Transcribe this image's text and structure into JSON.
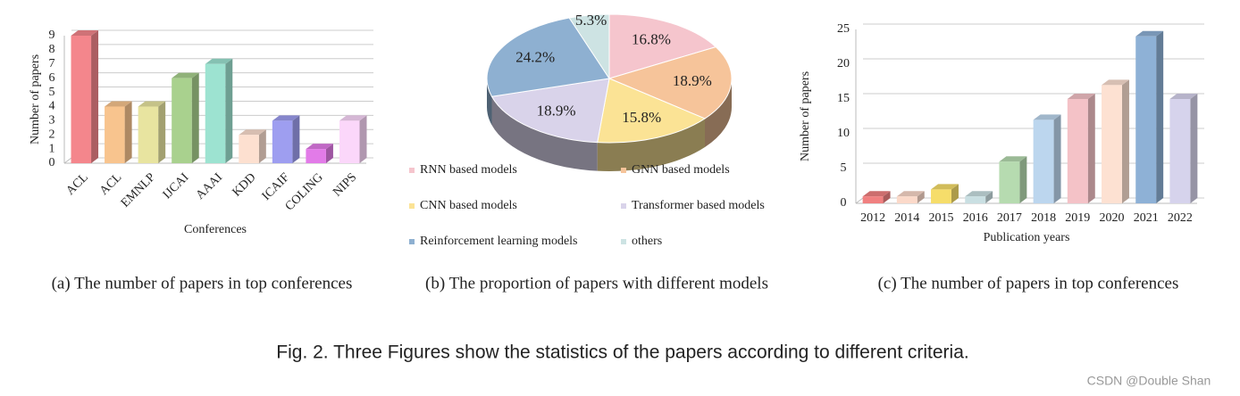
{
  "chart_data": [
    {
      "type": "bar",
      "caption": "(a) The number of papers in top conferences",
      "x_label": "Conferences",
      "y_label": "Number of papers",
      "categories": [
        "ACL",
        "ACL",
        "EMNLP",
        "IJCAI",
        "AAAI",
        "KDD",
        "ICAIF",
        "COLING",
        "NIPS"
      ],
      "values": [
        9,
        4,
        4,
        6,
        7,
        2,
        3,
        1,
        3
      ],
      "colors": [
        "#f4868c",
        "#f8c48e",
        "#e8e4a0",
        "#a9d18e",
        "#9de3d1",
        "#fde0d0",
        "#9e9ef0",
        "#e27be8",
        "#fbd7fa"
      ],
      "ylim": [
        0,
        9
      ],
      "yticks": [
        0,
        1,
        2,
        3,
        4,
        5,
        6,
        7,
        8,
        9
      ],
      "grid": true,
      "rotate_labels": true
    },
    {
      "type": "pie",
      "caption": "(b) The proportion of papers with different models",
      "categories": [
        "RNN based models",
        "GNN based models",
        "CNN based models",
        "Transformer based models",
        "Reinforcement learning models",
        "others"
      ],
      "values": [
        16.8,
        18.9,
        15.8,
        18.9,
        24.2,
        5.3
      ],
      "value_labels": [
        "16.8%",
        "18.9%",
        "15.8%",
        "18.9%",
        "24.2%",
        "5.3%"
      ],
      "colors": [
        "#f5c5cd",
        "#f6c49a",
        "#fbe395",
        "#d9d3ea",
        "#8eb0d1",
        "#cde3e3"
      ]
    },
    {
      "type": "bar",
      "caption": "(c) The number of papers in top conferences",
      "x_label": "Publication years",
      "y_label": "Number of papers",
      "categories": [
        "2012",
        "2014",
        "2015",
        "2016",
        "2017",
        "2018",
        "2019",
        "2020",
        "2021",
        "2022"
      ],
      "values": [
        1,
        1,
        2,
        1,
        6,
        12,
        15,
        17,
        24,
        15
      ],
      "colors": [
        "#f08080",
        "#fbd9c9",
        "#f6dd6a",
        "#c9dfe2",
        "#b6dbb0",
        "#bcd6ee",
        "#f4c2c7",
        "#fde1d2",
        "#8eb1d6",
        "#d6d3ec"
      ],
      "ylim": [
        0,
        25
      ],
      "yticks": [
        0,
        5,
        10,
        15,
        20,
        25
      ],
      "grid": true,
      "rotate_labels": false
    }
  ],
  "caption": "Fig. 2.  Three Figures show the statistics of the papers according to different criteria.",
  "watermark": "CSDN @Double Shan"
}
